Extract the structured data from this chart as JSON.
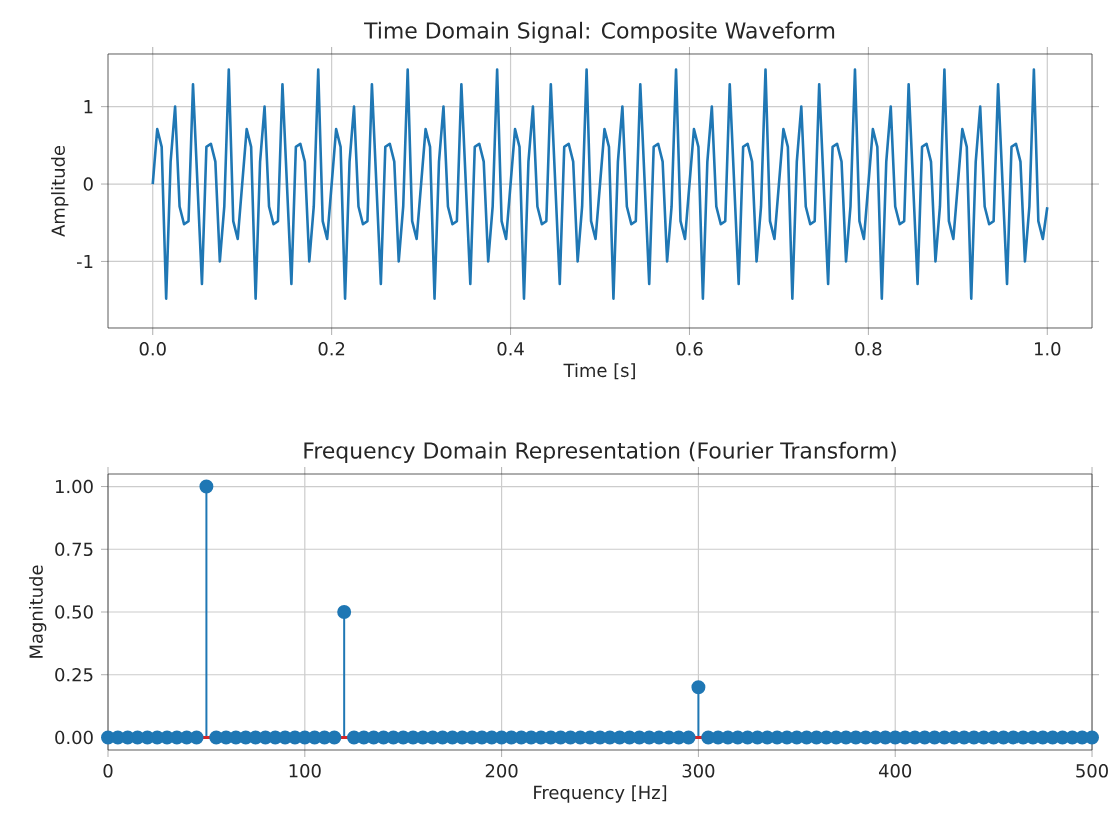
{
  "chart_data": [
    {
      "type": "line",
      "title": "Time Domain Signal: Composite Waveform",
      "xlabel": "Time [s]",
      "ylabel": "Amplitude",
      "color": "#1f77b4",
      "grid": true,
      "line_style": "solid",
      "xlim": [
        -0.05,
        1.05
      ],
      "ylim": [
        -1.86,
        1.68
      ],
      "xticks": [
        {
          "value": 0,
          "label": "0.0"
        },
        {
          "value": 0.2,
          "label": "0.2"
        },
        {
          "value": 0.4,
          "label": "0.4"
        },
        {
          "value": 0.6,
          "label": "0.6"
        },
        {
          "value": 0.8,
          "label": "0.8"
        },
        {
          "value": 1,
          "label": "1.0"
        }
      ],
      "yticks": [
        -1,
        0,
        1
      ],
      "x": [
        0,
        0.005,
        0.01,
        0.015,
        0.02,
        0.025,
        0.03,
        0.035,
        0.04,
        0.045,
        0.05,
        0.055,
        0.06,
        0.065,
        0.07,
        0.075,
        0.08,
        0.085,
        0.09,
        0.095,
        0.1,
        0.105,
        0.11,
        0.115,
        0.12,
        0.125,
        0.13,
        0.135,
        0.14,
        0.145,
        0.15,
        0.155,
        0.16,
        0.165,
        0.17,
        0.175,
        0.18,
        0.185,
        0.19,
        0.195,
        0.2,
        0.205,
        0.21,
        0.215,
        0.22,
        0.225,
        0.23,
        0.235,
        0.24,
        0.245,
        0.25,
        0.255,
        0.26,
        0.265,
        0.27,
        0.275,
        0.28,
        0.285,
        0.29,
        0.295,
        0.3,
        0.305,
        0.31,
        0.315,
        0.32,
        0.325,
        0.33,
        0.335,
        0.34,
        0.345,
        0.35,
        0.355,
        0.36,
        0.365,
        0.37,
        0.375,
        0.38,
        0.385,
        0.39,
        0.395,
        0.4,
        0.405,
        0.41,
        0.415,
        0.42,
        0.425,
        0.43,
        0.435,
        0.44,
        0.445,
        0.45,
        0.455,
        0.46,
        0.465,
        0.47,
        0.475,
        0.48,
        0.485,
        0.49,
        0.495,
        0.5,
        0.505,
        0.51,
        0.515,
        0.52,
        0.525,
        0.53,
        0.535,
        0.54,
        0.545,
        0.55,
        0.555,
        0.56,
        0.565,
        0.57,
        0.575,
        0.58,
        0.585,
        0.59,
        0.595,
        0.6,
        0.605,
        0.61,
        0.615,
        0.62,
        0.625,
        0.63,
        0.635,
        0.64,
        0.645,
        0.65,
        0.655,
        0.66,
        0.665,
        0.67,
        0.675,
        0.68,
        0.685,
        0.69,
        0.695,
        0.7,
        0.705,
        0.71,
        0.715,
        0.72,
        0.725,
        0.73,
        0.735,
        0.74,
        0.745,
        0.75,
        0.755,
        0.76,
        0.765,
        0.77,
        0.775,
        0.78,
        0.785,
        0.79,
        0.795,
        0.8,
        0.805,
        0.81,
        0.815,
        0.82,
        0.825,
        0.83,
        0.835,
        0.84,
        0.845,
        0.85,
        0.855,
        0.86,
        0.865,
        0.87,
        0.875,
        0.88,
        0.885,
        0.89,
        0.895,
        0.9,
        0.905,
        0.91,
        0.915,
        0.92,
        0.925,
        0.93,
        0.935,
        0.94,
        0.945,
        0.95,
        0.955,
        0.96,
        0.965,
        0.97,
        0.975,
        0.98,
        0.985,
        0.99,
        0.995,
        1
      ],
      "values": [
        0,
        0.71,
        0.48,
        -1.48,
        0.29,
        1.0,
        -0.29,
        -0.52,
        -0.48,
        1.29,
        0,
        -1.29,
        0.48,
        0.52,
        0.29,
        -1.0,
        -0.29,
        1.48,
        -0.48,
        -0.71,
        0,
        0.71,
        0.48,
        -1.48,
        0.29,
        1.0,
        -0.29,
        -0.52,
        -0.48,
        1.29,
        0,
        -1.29,
        0.48,
        0.52,
        0.29,
        -1.0,
        -0.29,
        1.48,
        -0.48,
        -0.71,
        0,
        0.71,
        0.48,
        -1.48,
        0.29,
        1.0,
        -0.29,
        -0.52,
        -0.48,
        1.29,
        0,
        -1.29,
        0.48,
        0.52,
        0.29,
        -1.0,
        -0.29,
        1.48,
        -0.48,
        -0.71,
        0,
        0.71,
        0.48,
        -1.48,
        0.29,
        1.0,
        -0.29,
        -0.52,
        -0.48,
        1.29,
        0,
        -1.29,
        0.48,
        0.52,
        0.29,
        -1.0,
        -0.29,
        1.48,
        -0.48,
        -0.71,
        0,
        0.71,
        0.48,
        -1.48,
        0.29,
        1.0,
        -0.29,
        -0.52,
        -0.48,
        1.29,
        0,
        -1.29,
        0.48,
        0.52,
        0.29,
        -1.0,
        -0.29,
        1.48,
        -0.48,
        -0.71,
        0,
        0.71,
        0.48,
        -1.48,
        0.29,
        1.0,
        -0.29,
        -0.52,
        -0.48,
        1.29,
        0,
        -1.29,
        0.48,
        0.52,
        0.29,
        -1.0,
        -0.29,
        1.48,
        -0.48,
        -0.71,
        0,
        0.71,
        0.48,
        -1.48,
        0.29,
        1.0,
        -0.29,
        -0.52,
        -0.48,
        1.29,
        0,
        -1.29,
        0.48,
        0.52,
        0.29,
        -1.0,
        -0.29,
        1.48,
        -0.48,
        -0.71,
        0,
        0.71,
        0.48,
        -1.48,
        0.29,
        1.0,
        -0.29,
        -0.52,
        -0.48,
        1.29,
        0,
        -1.29,
        0.48,
        0.52,
        0.29,
        -1.0,
        -0.29,
        1.48,
        -0.48,
        -0.71,
        0,
        0.71,
        0.48,
        -1.48,
        0.29,
        1.0,
        -0.29,
        -0.52,
        -0.48,
        1.29,
        0,
        -1.29,
        0.48,
        0.52,
        0.29,
        -1.0,
        -0.29,
        1.48,
        -0.48,
        -0.71,
        0,
        0.71,
        0.48,
        -1.48,
        0.29,
        1.0,
        -0.29,
        -0.52,
        -0.48,
        1.29,
        0,
        -1.29,
        0.48,
        0.52,
        0.29,
        -1.0,
        -0.29,
        1.48,
        -0.48,
        -0.71,
        -0.3
      ]
    },
    {
      "type": "lollipop",
      "title": "Frequency Domain Representation (Fourier Transform)",
      "xlabel": "Frequency [Hz]",
      "ylabel": "Magnitude",
      "color": "#1f77b4",
      "grid": true,
      "marker": "circle",
      "xlim": [
        0,
        500
      ],
      "ylim": [
        -0.05,
        1.05
      ],
      "xticks": [
        0,
        100,
        200,
        300,
        400,
        500
      ],
      "yticks": [
        {
          "value": 0,
          "label": "0.00"
        },
        {
          "value": 0.25,
          "label": "0.25"
        },
        {
          "value": 0.5,
          "label": "0.50"
        },
        {
          "value": 0.75,
          "label": "0.75"
        },
        {
          "value": 1,
          "label": "1.00"
        }
      ],
      "ref_lines": [
        {
          "axis": "y",
          "value": 0,
          "color": "#d62728"
        }
      ],
      "x": [
        0,
        5,
        10,
        15,
        20,
        25,
        30,
        35,
        40,
        45,
        50,
        55,
        60,
        65,
        70,
        75,
        80,
        85,
        90,
        95,
        100,
        105,
        110,
        115,
        120,
        125,
        130,
        135,
        140,
        145,
        150,
        155,
        160,
        165,
        170,
        175,
        180,
        185,
        190,
        195,
        200,
        205,
        210,
        215,
        220,
        225,
        230,
        235,
        240,
        245,
        250,
        255,
        260,
        265,
        270,
        275,
        280,
        285,
        290,
        295,
        300,
        305,
        310,
        315,
        320,
        325,
        330,
        335,
        340,
        345,
        350,
        355,
        360,
        365,
        370,
        375,
        380,
        385,
        390,
        395,
        400,
        405,
        410,
        415,
        420,
        425,
        430,
        435,
        440,
        445,
        450,
        455,
        460,
        465,
        470,
        475,
        480,
        485,
        490,
        495,
        500
      ],
      "values": [
        0,
        0,
        0,
        0,
        0,
        0,
        0,
        0,
        0,
        0,
        1.0,
        0,
        0,
        0,
        0,
        0,
        0,
        0,
        0,
        0,
        0,
        0,
        0,
        0,
        0.5,
        0,
        0,
        0,
        0,
        0,
        0,
        0,
        0,
        0,
        0,
        0,
        0,
        0,
        0,
        0,
        0,
        0,
        0,
        0,
        0,
        0,
        0,
        0,
        0,
        0,
        0,
        0,
        0,
        0,
        0,
        0,
        0,
        0,
        0,
        0,
        0.2,
        0,
        0,
        0,
        0,
        0,
        0,
        0,
        0,
        0,
        0,
        0,
        0,
        0,
        0,
        0,
        0,
        0,
        0,
        0,
        0,
        0,
        0,
        0,
        0,
        0,
        0,
        0,
        0,
        0,
        0,
        0,
        0,
        0,
        0,
        0,
        0,
        0,
        0,
        0,
        0
      ]
    }
  ]
}
